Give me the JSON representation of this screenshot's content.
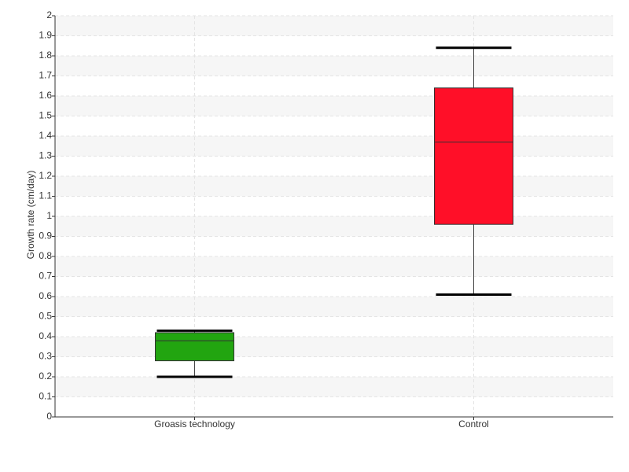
{
  "chart_data": {
    "type": "box",
    "y_label": "Growth rate (cm/day)",
    "categories": [
      "Groasis technology",
      "Control"
    ],
    "boxes": [
      {
        "whislo": 0.2,
        "q1": 0.28,
        "med": 0.38,
        "q3": 0.42,
        "whishi": 0.43,
        "color": "#22a510"
      },
      {
        "whislo": 0.61,
        "q1": 0.96,
        "med": 1.37,
        "q3": 1.64,
        "whishi": 1.84,
        "color": "#ff0f28"
      }
    ],
    "ylim": [
      0,
      2
    ],
    "yticks": [
      0,
      0.1,
      0.2,
      0.3,
      0.4,
      0.5,
      0.6,
      0.7,
      0.8,
      0.9,
      1,
      1.1,
      1.2,
      1.3,
      1.4,
      1.5,
      1.6,
      1.7,
      1.8,
      1.9,
      2
    ],
    "grid": true
  }
}
